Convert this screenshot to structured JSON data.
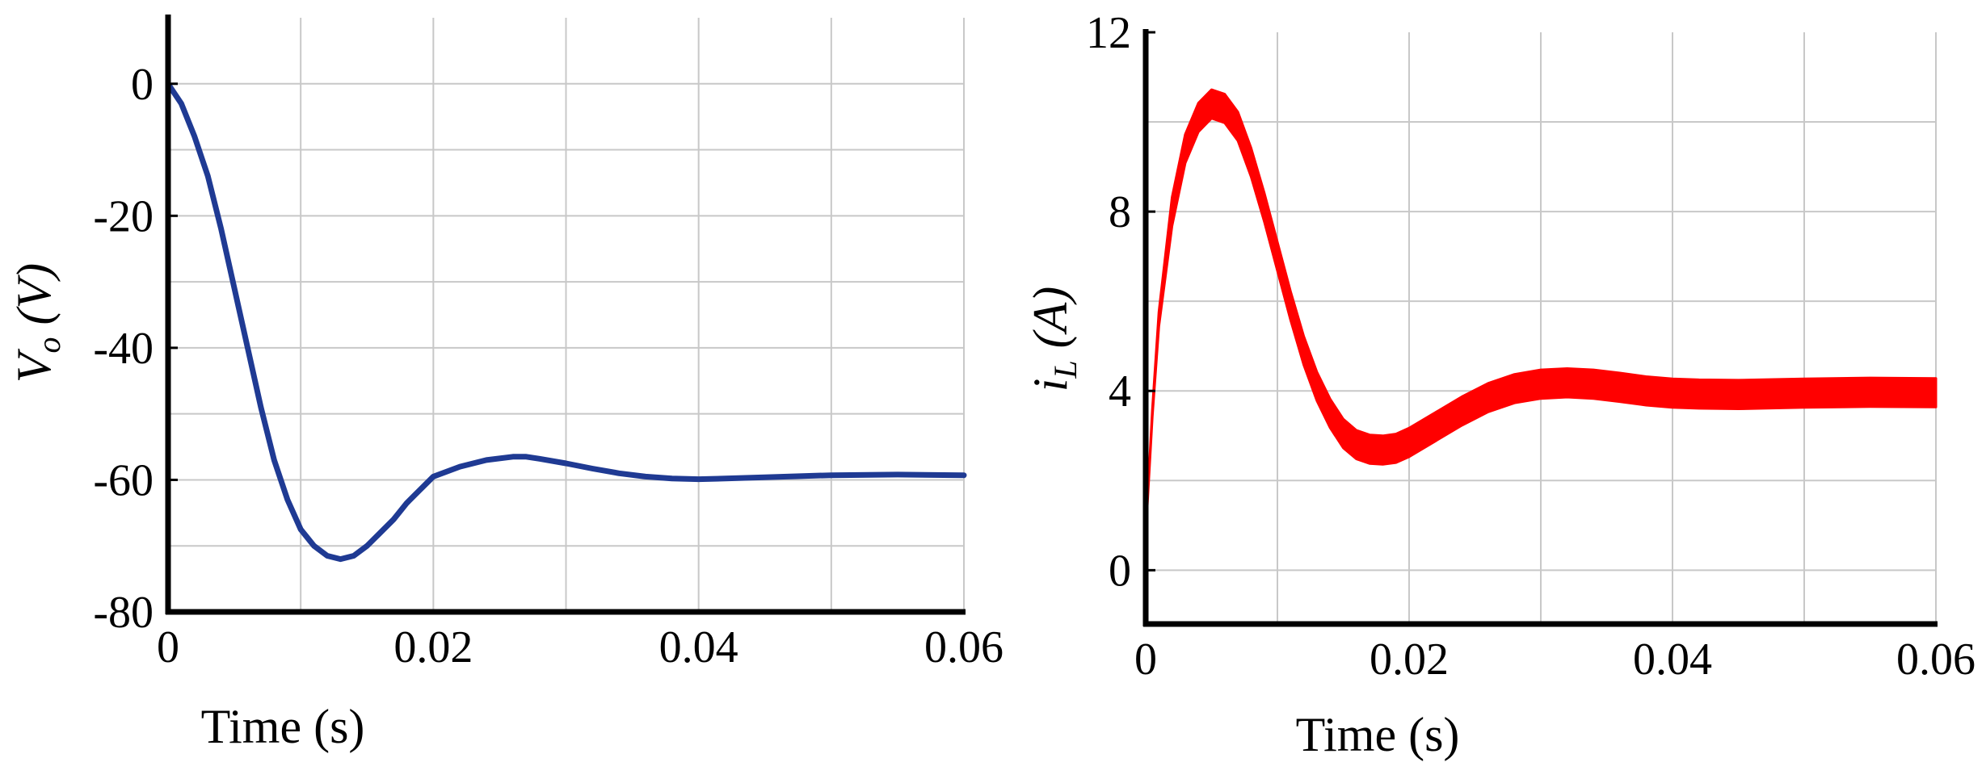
{
  "chart_data": [
    {
      "type": "line",
      "title": "",
      "xlabel": "Time (s)",
      "ylabel": "Vo (V)",
      "ylabel_parts": {
        "main": "V",
        "sub": "o",
        "unit": " (V)"
      },
      "xlim": [
        0,
        0.06
      ],
      "ylim": [
        -80,
        10
      ],
      "xticks": [
        0,
        0.02,
        0.04,
        0.06
      ],
      "xtick_labels": [
        "0",
        "0.02",
        "0.04",
        "0.06"
      ],
      "yticks": [
        0,
        -20,
        -40,
        -60,
        -80
      ],
      "ytick_labels": [
        "0",
        "-20",
        "-40",
        "-60",
        "-80"
      ],
      "xgrid_step": 0.01,
      "ygrid_step": 10,
      "grid": true,
      "legend": "none",
      "series": [
        {
          "color": "#1f3a93",
          "x": [
            0,
            0.001,
            0.002,
            0.003,
            0.004,
            0.005,
            0.006,
            0.007,
            0.008,
            0.009,
            0.01,
            0.011,
            0.012,
            0.013,
            0.014,
            0.015,
            0.016,
            0.017,
            0.018,
            0.019,
            0.02,
            0.022,
            0.024,
            0.026,
            0.027,
            0.028,
            0.03,
            0.032,
            0.034,
            0.036,
            0.038,
            0.04,
            0.042,
            0.045,
            0.05,
            0.055,
            0.06
          ],
          "y": [
            0,
            -3,
            -8,
            -14,
            -22,
            -31,
            -40,
            -49,
            -57,
            -63,
            -67.5,
            -70,
            -71.5,
            -72,
            -71.5,
            -70,
            -68,
            -66,
            -63.5,
            -61.5,
            -59.5,
            -58,
            -57,
            -56.5,
            -56.5,
            -56.8,
            -57.5,
            -58.3,
            -59,
            -59.5,
            -59.8,
            -59.9,
            -59.8,
            -59.6,
            -59.3,
            -59.2,
            -59.3
          ]
        }
      ]
    },
    {
      "type": "line",
      "title": "",
      "xlabel": "Time (s)",
      "ylabel": "iL (A)",
      "ylabel_parts": {
        "main": "i",
        "sub": "L",
        "unit": " (A)"
      },
      "xlim": [
        0,
        0.06
      ],
      "ylim": [
        -1.2,
        12
      ],
      "xticks": [
        0,
        0.02,
        0.04,
        0.06
      ],
      "xtick_labels": [
        "0",
        "0.02",
        "0.04",
        "0.06"
      ],
      "yticks": [
        0,
        4,
        8,
        12
      ],
      "ytick_labels": [
        "0",
        "4",
        "8",
        "12"
      ],
      "xgrid_step": 0.01,
      "ygrid_step": 2,
      "grid": true,
      "legend": "none",
      "series": [
        {
          "color": "#ff0000",
          "ripple_amplitude": 0.32,
          "x": [
            0,
            0.0005,
            0.001,
            0.002,
            0.003,
            0.004,
            0.005,
            0.006,
            0.007,
            0.008,
            0.009,
            0.01,
            0.011,
            0.012,
            0.013,
            0.014,
            0.015,
            0.016,
            0.017,
            0.018,
            0.019,
            0.02,
            0.022,
            0.024,
            0.026,
            0.028,
            0.03,
            0.032,
            0.034,
            0.036,
            0.038,
            0.04,
            0.042,
            0.045,
            0.05,
            0.055,
            0.06
          ],
          "y": [
            0.8,
            3.5,
            5.6,
            8.0,
            9.4,
            10.1,
            10.4,
            10.3,
            9.9,
            9.1,
            8.1,
            7.0,
            5.9,
            4.9,
            4.1,
            3.5,
            3.05,
            2.8,
            2.7,
            2.68,
            2.72,
            2.85,
            3.2,
            3.55,
            3.85,
            4.05,
            4.15,
            4.18,
            4.15,
            4.08,
            4.0,
            3.95,
            3.93,
            3.92,
            3.95,
            3.97,
            3.96
          ]
        }
      ]
    }
  ]
}
